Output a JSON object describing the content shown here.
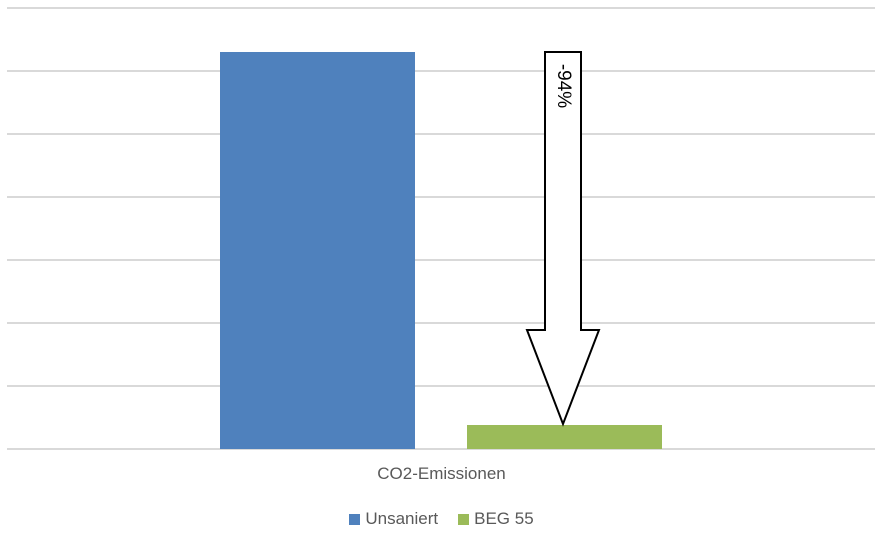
{
  "chart_data": {
    "type": "bar",
    "title": "",
    "xlabel": "",
    "ylabel": "",
    "categories": [
      "CO2-Emissionen"
    ],
    "series": [
      {
        "name": "Unsaniert",
        "values": [
          100
        ],
        "color": "#4f81bd"
      },
      {
        "name": "BEG 55",
        "values": [
          6
        ],
        "color": "#9bbb59"
      }
    ],
    "ylim": [
      0,
      110
    ],
    "grid": true,
    "gridlines": 8,
    "y_tick_labels_visible": false,
    "legend_position": "bottom",
    "annotations": [
      {
        "type": "down-arrow",
        "text": "-94%",
        "from_series": "Unsaniert",
        "to_series": "BEG 55"
      }
    ]
  },
  "labels": {
    "category": "CO2-Emissionen",
    "arrow_text": "-94%",
    "legend": [
      {
        "label": "Unsaniert",
        "color": "#4f81bd"
      },
      {
        "label": "BEG 55",
        "color": "#9bbb59"
      }
    ]
  }
}
